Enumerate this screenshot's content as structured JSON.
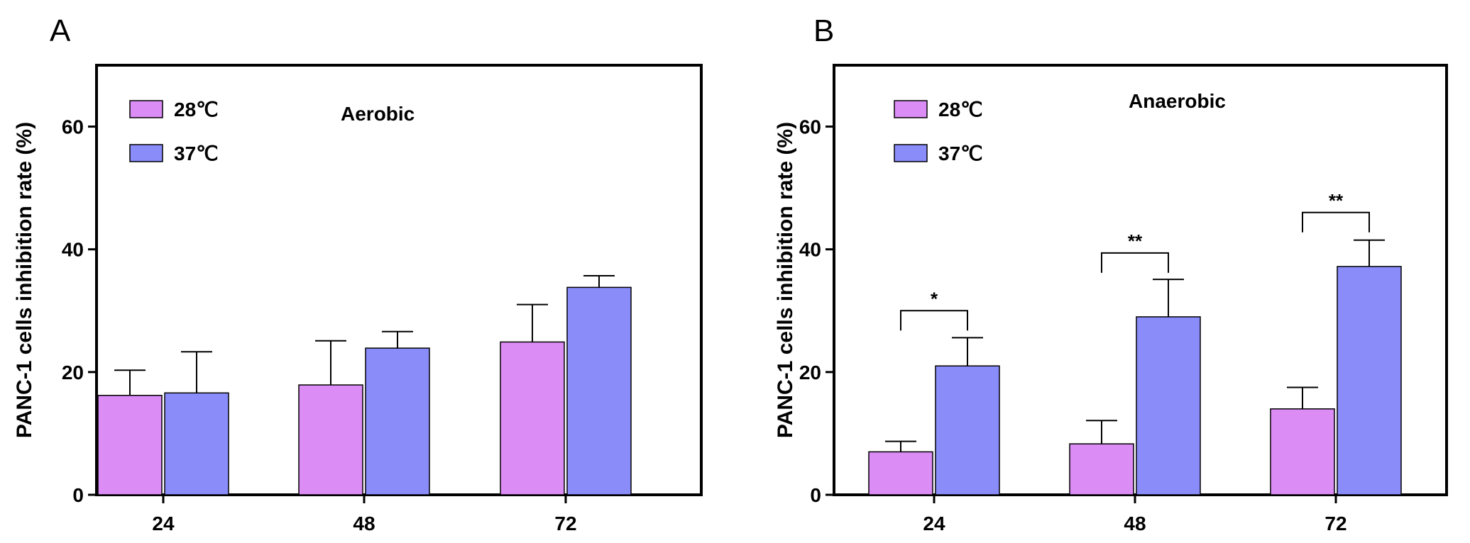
{
  "chart_data": [
    {
      "type": "bar",
      "panel": "A",
      "title": "Aerobic",
      "categories": [
        "24",
        "48",
        "72"
      ],
      "ylabel": "PANC-1 cells inhibition rate (%)",
      "xlabel": "",
      "ylim": [
        0,
        70
      ],
      "yticks": [
        0,
        20,
        40,
        60
      ],
      "legend_position": "top-left",
      "series": [
        {
          "name": "28℃",
          "color": "#DC8CF5",
          "values": [
            16.2,
            17.9,
            24.9
          ],
          "errors": [
            4.1,
            7.2,
            6.1
          ]
        },
        {
          "name": "37℃",
          "color": "#8A8CFA",
          "values": [
            16.6,
            23.9,
            33.8
          ],
          "errors": [
            6.7,
            2.7,
            1.9
          ]
        }
      ],
      "significance": []
    },
    {
      "type": "bar",
      "panel": "B",
      "title": "Anaerobic",
      "categories": [
        "24",
        "48",
        "72"
      ],
      "ylabel": "PANC-1 cells inhibition rate (%)",
      "xlabel": "",
      "ylim": [
        0,
        70
      ],
      "yticks": [
        0,
        20,
        40,
        60
      ],
      "legend_position": "top-left",
      "series": [
        {
          "name": "28℃",
          "color": "#DC8CF5",
          "values": [
            7.0,
            8.3,
            14.0
          ],
          "errors": [
            1.7,
            3.8,
            3.5
          ]
        },
        {
          "name": "37℃",
          "color": "#8A8CFA",
          "values": [
            21.0,
            29.0,
            37.2
          ],
          "errors": [
            4.6,
            6.1,
            4.3
          ]
        }
      ],
      "significance": [
        {
          "category": 0,
          "label": "*",
          "y": 30.0
        },
        {
          "category": 1,
          "label": "**",
          "y": 39.4
        },
        {
          "category": 2,
          "label": "**",
          "y": 46.0
        }
      ]
    }
  ]
}
